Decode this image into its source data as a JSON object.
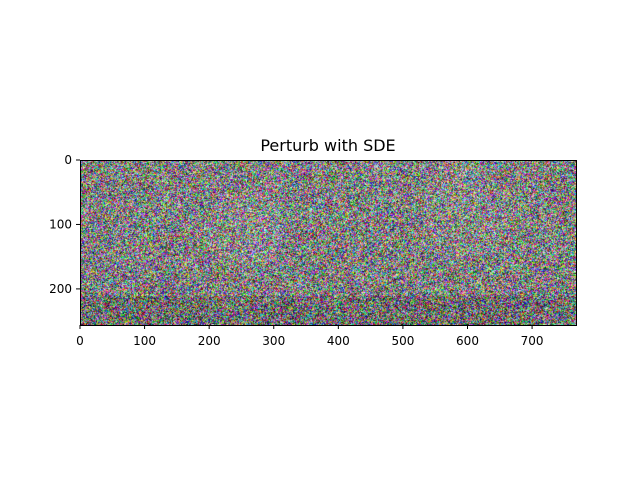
{
  "chart_data": {
    "type": "heatmap",
    "title": "Perturb with SDE",
    "xlabel": "",
    "ylabel": "",
    "image_size": {
      "width": 768,
      "height": 256
    },
    "xlim": [
      0,
      768
    ],
    "ylim": [
      256,
      0
    ],
    "x_ticks": [
      0,
      100,
      200,
      300,
      400,
      500,
      600,
      700
    ],
    "y_ticks": [
      0,
      100,
      200
    ],
    "grid": false,
    "legend": "none",
    "content": "RGB noise",
    "colors": {
      "frame": "#000000",
      "background": "#ffffff"
    }
  }
}
